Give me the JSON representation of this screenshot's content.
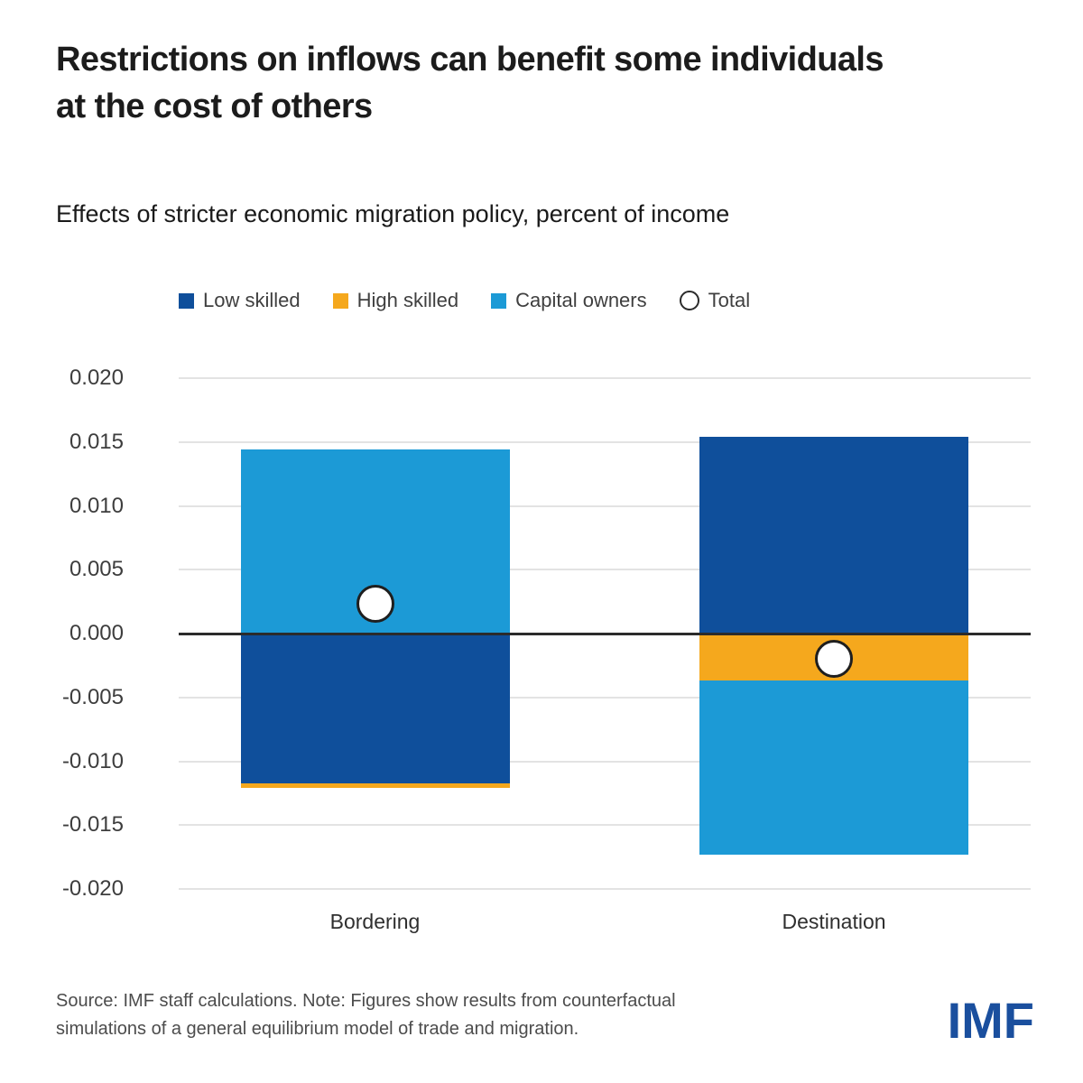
{
  "title_lines": [
    "Restrictions on inflows can benefit some individuals",
    "at the cost of others"
  ],
  "subtitle": "Effects of stricter economic migration policy, percent of income",
  "legend": [
    {
      "label": "Low skilled",
      "marker": "square",
      "color": "#0F4F9B"
    },
    {
      "label": "High skilled",
      "marker": "square",
      "color": "#F5A81D"
    },
    {
      "label": "Capital owners",
      "marker": "square",
      "color": "#1C9AD6"
    },
    {
      "label": "Total",
      "marker": "circle",
      "color": "#FFFFFF"
    }
  ],
  "chart_data": {
    "type": "bar",
    "stacked": true,
    "title": "Effects of stricter economic migration policy, percent of income",
    "xlabel": "",
    "ylabel": "percent of income",
    "categories": [
      "Bordering",
      "Destination"
    ],
    "series": [
      {
        "name": "Low skilled",
        "color": "#0F4F9B",
        "values": [
          -0.0117,
          0.0154
        ]
      },
      {
        "name": "High skilled",
        "color": "#F5A81D",
        "values": [
          -0.0004,
          -0.0037
        ]
      },
      {
        "name": "Capital owners",
        "color": "#1C9AD6",
        "values": [
          0.0144,
          -0.0136
        ]
      }
    ],
    "total_markers": {
      "name": "Total",
      "values": [
        0.0023,
        -0.002
      ]
    },
    "ylim": [
      -0.02,
      0.02
    ],
    "yticks": [
      0.02,
      0.015,
      0.01,
      0.005,
      0,
      -0.005,
      -0.01,
      -0.015,
      -0.02
    ],
    "ytick_labels": [
      "0.020",
      "0.015",
      "0.010",
      "0.005",
      "0.000",
      "-0.005",
      "-0.010",
      "-0.015",
      "-0.020"
    ],
    "grid": true,
    "zero_line": true,
    "legend_position": "top"
  },
  "source_note_lines": [
    "Source: IMF staff calculations. Note: Figures show results from counterfactual",
    "simulations of a general equilibrium model of trade and migration."
  ],
  "logo": {
    "text": "IMF",
    "color": "#1A4F9E"
  },
  "colors": {
    "gridline": "#E3E3E3",
    "zero_line": "#2B2B2B",
    "axis_text": "#3D3D3D",
    "legend_text": "#3F3F3F",
    "title_text": "#1C1C1C",
    "note_text": "#4C4C4C"
  }
}
